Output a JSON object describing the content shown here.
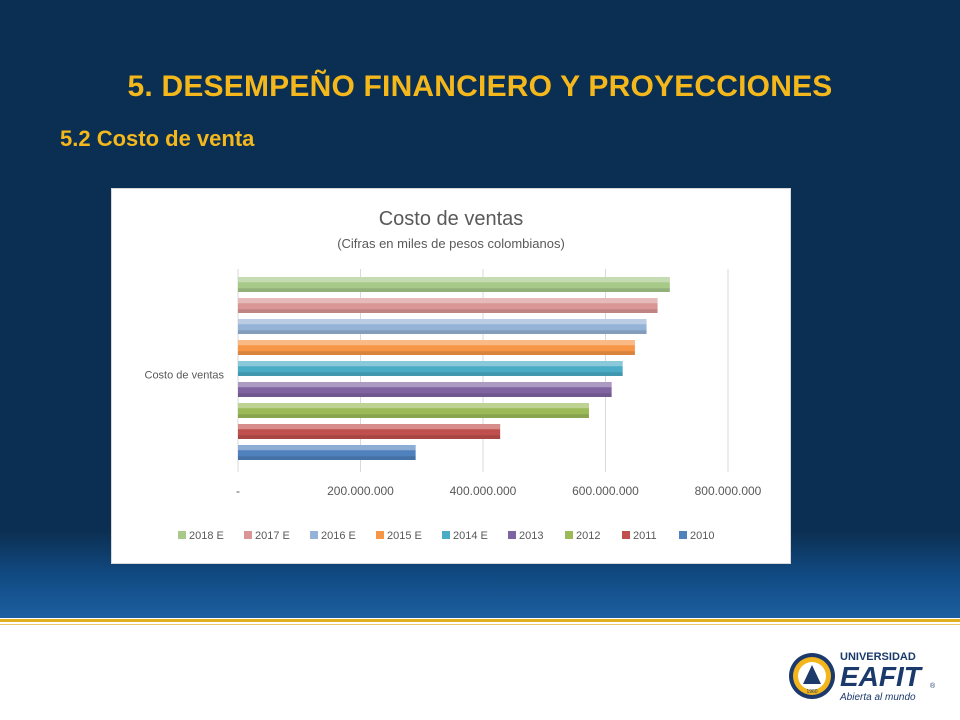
{
  "slide": {
    "heading": "5. DESEMPEÑO FINANCIERO Y PROYECCIONES",
    "subheading": "5.2 Costo de venta"
  },
  "logo": {
    "line1": "UNIVERSIDAD",
    "line2": "EAFIT",
    "tagline": "Abierta al mundo",
    "registered": "®",
    "badge_text": "1960",
    "icon": "eafit-gear-emblem",
    "colors": {
      "navy": "#1b3a6b",
      "gold": "#f2b51b"
    }
  },
  "chart_data": {
    "type": "bar",
    "orientation": "horizontal",
    "title": "Costo de ventas",
    "subtitle": "(Cifras en miles de pesos colombianos)",
    "categories": [
      "Costo de ventas"
    ],
    "series": [
      {
        "name": "2018 E",
        "values": [
          705000000
        ],
        "color": "#a7c98a"
      },
      {
        "name": "2017 E",
        "values": [
          685000000
        ],
        "color": "#d99694"
      },
      {
        "name": "2016 E",
        "values": [
          667000000
        ],
        "color": "#95b3d7"
      },
      {
        "name": "2015 E",
        "values": [
          648000000
        ],
        "color": "#f79646"
      },
      {
        "name": "2014 E",
        "values": [
          628000000
        ],
        "color": "#4bacc6"
      },
      {
        "name": "2013",
        "values": [
          610000000
        ],
        "color": "#8064a2"
      },
      {
        "name": "2012",
        "values": [
          573000000
        ],
        "color": "#9bbb59"
      },
      {
        "name": "2011",
        "values": [
          428000000
        ],
        "color": "#c0504d"
      },
      {
        "name": "2010",
        "values": [
          290000000
        ],
        "color": "#4f81bd"
      }
    ],
    "xlim": [
      0,
      800000000
    ],
    "x_ticks": [
      0,
      200000000,
      400000000,
      600000000,
      800000000
    ],
    "x_tick_labels": [
      "-",
      "200.000.000",
      "400.000.000",
      "600.000.000",
      "800.000.000"
    ],
    "grid": "vertical",
    "legend_position": "bottom"
  }
}
